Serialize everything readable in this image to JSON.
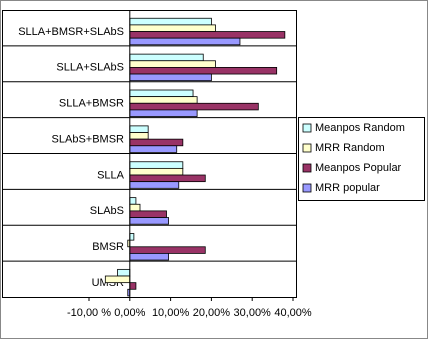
{
  "chart_data": {
    "type": "bar",
    "orientation": "horizontal",
    "categories": [
      "SLLA+BMSR+SLAbS",
      "SLLA+SLAbS",
      "SLLA+BMSR",
      "SLAbS+BMSR",
      "SLLA",
      "SLAbS",
      "BMSR",
      "UMSR"
    ],
    "series": [
      {
        "name": "Meanpos Random",
        "color": "#ccffff",
        "values": [
          20,
          18,
          15.5,
          4.5,
          13,
          1.5,
          1,
          -3
        ]
      },
      {
        "name": "MRR Random",
        "color": "#ffffcc",
        "values": [
          21,
          21,
          16.5,
          4.5,
          13,
          2.5,
          -0.5,
          -6
        ]
      },
      {
        "name": "Meanpos Popular",
        "color": "#993366",
        "values": [
          38,
          36,
          31.5,
          13,
          18.5,
          9,
          18.5,
          1.5
        ]
      },
      {
        "name": "MRR popular",
        "color": "#9999ff",
        "values": [
          27,
          20,
          16.5,
          11.5,
          12,
          9.5,
          9.5,
          -0.5
        ]
      }
    ],
    "xlim": [
      -10,
      40
    ],
    "xticks": [
      {
        "value": -10,
        "label": "-10,00 %"
      },
      {
        "value": 0,
        "label": "0,00%"
      },
      {
        "value": 10,
        "label": "10,00%"
      },
      {
        "value": 20,
        "label": "20,00%"
      },
      {
        "value": 30,
        "label": "30,00%"
      },
      {
        "value": 40,
        "label": "40,00%"
      }
    ],
    "legend": "right"
  }
}
